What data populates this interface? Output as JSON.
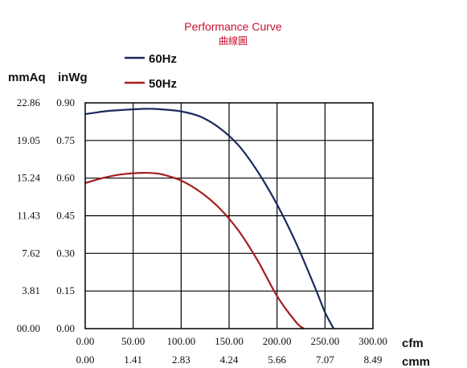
{
  "chart_data": {
    "type": "line",
    "title": "Performance Curve",
    "subtitle": "曲線圖",
    "x_unit_primary": "cfm",
    "x_unit_secondary": "cmm",
    "y_unit_left": "mmAq",
    "y_unit_right": "inWg",
    "x_ticks_primary": [
      "0.00",
      "50.00",
      "100.00",
      "150.00",
      "200.00",
      "250.00",
      "300.00"
    ],
    "x_ticks_secondary": [
      "0.00",
      "1.41",
      "2.83",
      "4.24",
      "5.66",
      "7.07",
      "8.49"
    ],
    "y_ticks_left": [
      "00.00",
      "3.81",
      "7.62",
      "11.43",
      "15.24",
      "19.05",
      "22.86"
    ],
    "y_ticks_right": [
      "0.00",
      "0.15",
      "0.30",
      "0.45",
      "0.60",
      "0.75",
      "0.90"
    ],
    "xlim": [
      0,
      300
    ],
    "ylim": [
      0,
      0.9
    ],
    "grid": true,
    "legend_position": "top-left",
    "series": [
      {
        "name": "60Hz",
        "color": "#1b2a5c",
        "x": [
          0,
          20,
          40,
          60,
          70,
          80,
          100,
          120,
          140,
          160,
          180,
          200,
          220,
          240,
          250,
          259
        ],
        "y": [
          0.855,
          0.866,
          0.872,
          0.876,
          0.876,
          0.874,
          0.866,
          0.845,
          0.8,
          0.73,
          0.625,
          0.495,
          0.34,
          0.16,
          0.065,
          0.0
        ]
      },
      {
        "name": "50Hz",
        "color": "#a31d1d",
        "x": [
          0,
          20,
          40,
          60,
          70,
          80,
          100,
          120,
          140,
          160,
          180,
          200,
          220,
          228
        ],
        "y": [
          0.58,
          0.602,
          0.616,
          0.621,
          0.62,
          0.615,
          0.59,
          0.545,
          0.48,
          0.39,
          0.27,
          0.13,
          0.025,
          0.0
        ]
      }
    ]
  }
}
